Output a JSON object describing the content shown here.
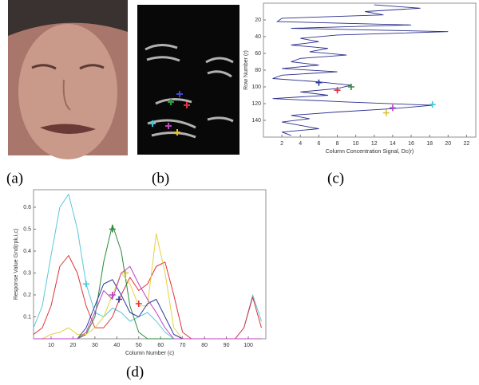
{
  "panel_labels": [
    "(a)",
    "(b)",
    "(c)",
    "(d)"
  ],
  "chart_data": [
    {
      "type": "line",
      "x_label": "Column Concentration Signal, Dc(r)",
      "y_label": "Row Number (r)",
      "xlim": [
        0,
        23
      ],
      "ylim": [
        0,
        160
      ],
      "y_reversed": true,
      "xticks": [
        2,
        4,
        6,
        8,
        10,
        12,
        14,
        16,
        18,
        20,
        22
      ],
      "yticks": [
        20,
        40,
        60,
        80,
        100,
        120,
        140
      ],
      "color": "#2a2f8c",
      "rows": [
        2,
        6,
        10,
        14,
        18,
        22,
        26,
        30,
        34,
        38,
        42,
        46,
        50,
        54,
        58,
        62,
        66,
        70,
        74,
        78,
        82,
        86,
        90,
        94,
        98,
        102,
        106,
        110,
        114,
        118,
        122,
        126,
        130,
        134,
        138,
        142,
        146,
        150,
        154,
        158
      ],
      "values": [
        12,
        17,
        11,
        13,
        2,
        1.5,
        16,
        3,
        20,
        8,
        4,
        6,
        3,
        7,
        5,
        9,
        4,
        3,
        6,
        2,
        8,
        2,
        1,
        6,
        9.5,
        8,
        4,
        7,
        1,
        9,
        18.3,
        14,
        8,
        3,
        5,
        2,
        4,
        6,
        2,
        3
      ],
      "markers": [
        {
          "color": "#2a3aa0",
          "value": 6,
          "row": 95
        },
        {
          "color": "#2a8a3a",
          "value": 9.5,
          "row": 100
        },
        {
          "color": "#e0303a",
          "value": 8,
          "row": 104
        },
        {
          "color": "#3ccad8",
          "value": 18.3,
          "row": 121
        },
        {
          "color": "#c040c0",
          "value": 14,
          "row": 125
        },
        {
          "color": "#e0c030",
          "value": 13.3,
          "row": 131
        }
      ]
    },
    {
      "type": "line",
      "x_label": "Column Number (c)",
      "y_label": "Response Value Gnd(rpk,i,c)",
      "xlim": [
        2,
        108
      ],
      "ylim": [
        0,
        0.68
      ],
      "xticks": [
        10,
        20,
        30,
        40,
        50,
        60,
        70,
        80,
        90,
        100
      ],
      "yticks": [
        0.1,
        0.2,
        0.3,
        0.4,
        0.5,
        0.6
      ],
      "x": [
        2,
        6,
        10,
        14,
        18,
        22,
        26,
        30,
        34,
        38,
        42,
        46,
        50,
        54,
        58,
        62,
        66,
        70,
        74,
        78,
        82,
        86,
        90,
        94,
        98,
        102,
        106
      ],
      "series": [
        {
          "color": "#5bc8d8",
          "values": [
            0.05,
            0.15,
            0.38,
            0.6,
            0.66,
            0.5,
            0.25,
            0.12,
            0.1,
            0.14,
            0.12,
            0.08,
            0.1,
            0.12,
            0.08,
            0.03,
            0,
            0,
            0,
            0,
            0,
            0,
            0,
            0,
            0.05,
            0.2,
            0.08
          ]
        },
        {
          "color": "#e0303a",
          "values": [
            0.02,
            0.05,
            0.15,
            0.33,
            0.38,
            0.3,
            0.15,
            0.05,
            0.05,
            0.1,
            0.2,
            0.28,
            0.22,
            0.25,
            0.33,
            0.35,
            0.2,
            0.03,
            0,
            0,
            0,
            0,
            0,
            0,
            0.05,
            0.19,
            0.05
          ]
        },
        {
          "color": "#2a8a3a",
          "values": [
            0,
            0,
            0,
            0,
            0,
            0,
            0.02,
            0.1,
            0.35,
            0.52,
            0.4,
            0.15,
            0.03,
            0,
            0,
            0,
            0,
            0,
            0,
            0,
            0,
            0,
            0,
            0,
            0,
            0,
            0
          ]
        },
        {
          "color": "#e8d040",
          "values": [
            0,
            0,
            0.02,
            0.03,
            0.05,
            0.02,
            0.02,
            0.05,
            0.1,
            0.2,
            0.3,
            0.25,
            0.15,
            0.15,
            0.48,
            0.3,
            0.05,
            0,
            0,
            0,
            0,
            0,
            0,
            0,
            0,
            0,
            0
          ]
        },
        {
          "color": "#2a3aa0",
          "values": [
            0,
            0,
            0,
            0,
            0,
            0,
            0.05,
            0.15,
            0.25,
            0.27,
            0.2,
            0.12,
            0.1,
            0.16,
            0.18,
            0.1,
            0.02,
            0,
            0,
            0,
            0,
            0,
            0,
            0,
            0,
            0,
            0
          ]
        },
        {
          "color": "#c040c0",
          "values": [
            0,
            0,
            0,
            0,
            0,
            0,
            0.03,
            0.12,
            0.22,
            0.18,
            0.3,
            0.33,
            0.25,
            0.18,
            0.12,
            0.05,
            0,
            0,
            0,
            0,
            0,
            0,
            0,
            0,
            0,
            0,
            0
          ]
        }
      ],
      "markers": [
        {
          "color": "#3ccad8",
          "x": 26,
          "y": 0.25
        },
        {
          "color": "#2a8a3a",
          "x": 38,
          "y": 0.5
        },
        {
          "color": "#e0c030",
          "x": 44,
          "y": 0.3
        },
        {
          "color": "#c040c0",
          "x": 38,
          "y": 0.2
        },
        {
          "color": "#2a3aa0",
          "x": 41,
          "y": 0.18
        },
        {
          "color": "#e0303a",
          "x": 50,
          "y": 0.16
        }
      ]
    }
  ]
}
